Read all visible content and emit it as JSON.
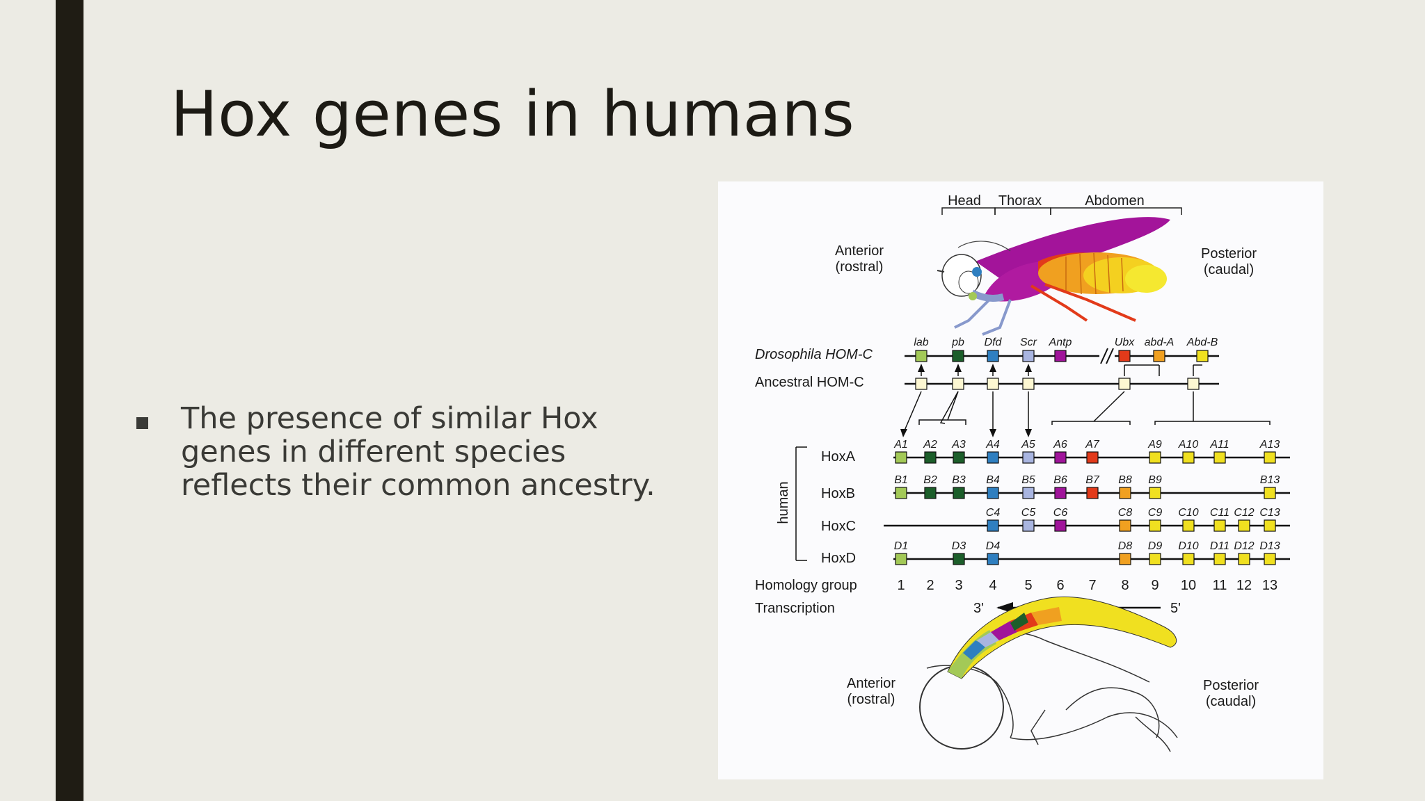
{
  "slide": {
    "title": "Hox genes in humans",
    "bullet": "The presence of similar Hox genes in different species reflects their common ancestry."
  },
  "diagram": {
    "segments": {
      "head": "Head",
      "thorax": "Thorax",
      "abdomen": "Abdomen"
    },
    "anterior": [
      "Anterior",
      "(rostral)"
    ],
    "posterior": [
      "Posterior",
      "(caudal)"
    ],
    "drosophila_label": "Drosophila  HOM-C",
    "ancestral_label": "Ancestral HOM-C",
    "human_label": "human",
    "drosophila_genes": [
      {
        "name": "lab",
        "color": "#a3c957"
      },
      {
        "name": "pb",
        "color": "#1c5e2a"
      },
      {
        "name": "Dfd",
        "color": "#2f7fc0"
      },
      {
        "name": "Scr",
        "color": "#a9b5e0"
      },
      {
        "name": "Antp",
        "color": "#a0149a"
      },
      {
        "name": "Ubx",
        "color": "#e23a1a"
      },
      {
        "name": "abd-A",
        "color": "#f0a020"
      },
      {
        "name": "Abd-B",
        "color": "#f0e020"
      }
    ],
    "clusters": [
      {
        "name": "HoxA",
        "genes": [
          "A1",
          "A2",
          "A3",
          "A4",
          "A5",
          "A6",
          "A7",
          "A9",
          "A10",
          "A11",
          "A13"
        ]
      },
      {
        "name": "HoxB",
        "genes": [
          "B1",
          "B2",
          "B3",
          "B4",
          "B5",
          "B6",
          "B7",
          "B8",
          "B9",
          "B13"
        ]
      },
      {
        "name": "HoxC",
        "genes": [
          "C4",
          "C5",
          "C6",
          "C8",
          "C9",
          "C10",
          "C11",
          "C12",
          "C13"
        ]
      },
      {
        "name": "HoxD",
        "genes": [
          "D1",
          "D3",
          "D4",
          "D8",
          "D9",
          "D10",
          "D11",
          "D12",
          "D13"
        ]
      }
    ],
    "homology_label": "Homology group",
    "homology_groups": [
      "1",
      "2",
      "3",
      "4",
      "5",
      "6",
      "7",
      "8",
      "9",
      "10",
      "11",
      "12",
      "13"
    ],
    "group_colors": {
      "1": "#a3c957",
      "2": "#1c5e2a",
      "3": "#1c5e2a",
      "4": "#2f7fc0",
      "5": "#a9b5e0",
      "6": "#a0149a",
      "7": "#e23a1a",
      "8": "#f0a020",
      "9": "#f0e020",
      "10": "#f0e020",
      "11": "#f0e020",
      "12": "#f0e020",
      "13": "#f0e020"
    },
    "transcription_label": "Transcription",
    "transcription_start": "3'",
    "transcription_end": "5'"
  }
}
